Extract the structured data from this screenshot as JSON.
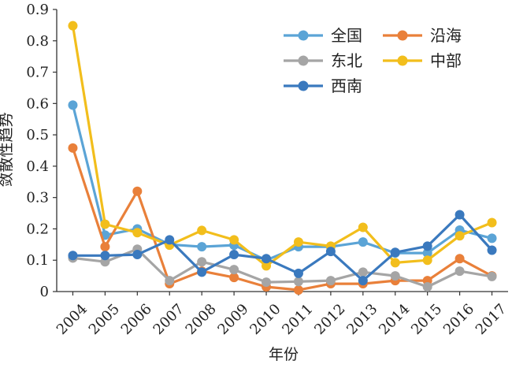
{
  "chart_data": {
    "type": "line",
    "xlabel": "年份",
    "ylabel": "敛散性趋势",
    "x": [
      "2004",
      "2005",
      "2006",
      "2007",
      "2008",
      "2009",
      "2010",
      "2011",
      "2012",
      "2013",
      "2014",
      "2015",
      "2016",
      "2017"
    ],
    "ylim": [
      0,
      0.9
    ],
    "yticks": [
      "0",
      "0.1",
      "0.2",
      "0.3",
      "0.4",
      "0.5",
      "0.6",
      "0.7",
      "0.8",
      "0.9"
    ],
    "grid": false,
    "legend_position": "top-right",
    "series": [
      {
        "name": "全国",
        "color": "#5BA4D6",
        "values": [
          0.595,
          0.18,
          0.2,
          0.15,
          0.143,
          0.148,
          0.1,
          0.143,
          0.143,
          0.158,
          0.123,
          0.123,
          0.196,
          0.17
        ]
      },
      {
        "name": "沿海",
        "color": "#E9803A",
        "values": [
          0.458,
          0.143,
          0.32,
          0.025,
          0.065,
          0.045,
          0.015,
          0.005,
          0.025,
          0.025,
          0.035,
          0.035,
          0.105,
          0.05
        ]
      },
      {
        "name": "东北",
        "color": "#A5A5A5",
        "values": [
          0.107,
          0.095,
          0.135,
          0.035,
          0.095,
          0.07,
          0.03,
          0.032,
          0.035,
          0.062,
          0.05,
          0.015,
          0.065,
          0.048
        ]
      },
      {
        "name": "中部",
        "color": "#F2BE1C",
        "values": [
          0.848,
          0.215,
          0.188,
          0.148,
          0.195,
          0.165,
          0.082,
          0.158,
          0.145,
          0.205,
          0.092,
          0.1,
          0.178,
          0.22
        ]
      },
      {
        "name": "西南",
        "color": "#3A79BE",
        "values": [
          0.115,
          0.115,
          0.118,
          0.165,
          0.062,
          0.118,
          0.105,
          0.058,
          0.128,
          0.035,
          0.125,
          0.145,
          0.245,
          0.132
        ]
      }
    ]
  }
}
